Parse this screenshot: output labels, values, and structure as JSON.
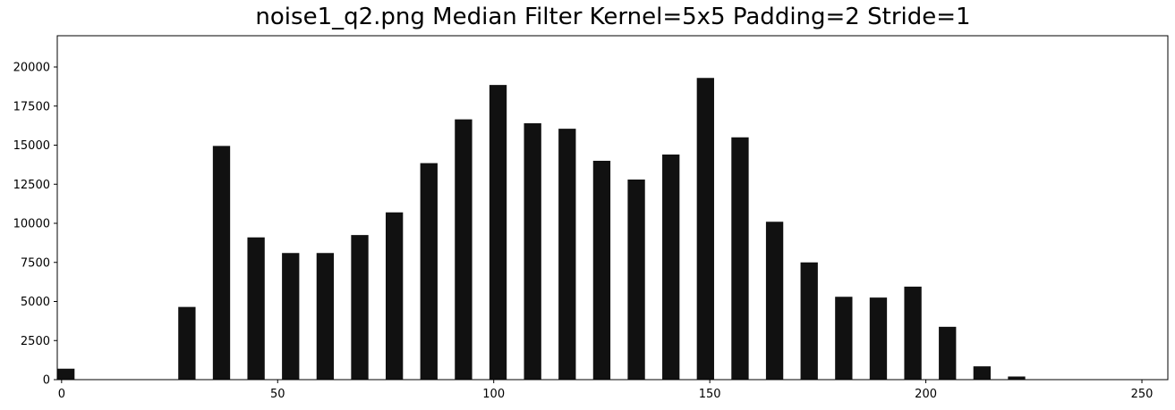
{
  "chart_data": {
    "type": "bar",
    "title": "noise1_q2.png Median Filter Kernel=5x5 Padding=2 Stride=1",
    "xlabel": "",
    "ylabel": "",
    "xlim": [
      -1,
      256
    ],
    "ylim": [
      0,
      22000
    ],
    "bar_color": "#111111",
    "bar_width": 4,
    "grid": false,
    "x": [
      0,
      28,
      36,
      44,
      52,
      60,
      68,
      76,
      84,
      92,
      100,
      108,
      116,
      124,
      132,
      140,
      148,
      156,
      164,
      172,
      180,
      188,
      196,
      204,
      212,
      220
    ],
    "values": [
      700,
      4650,
      14950,
      9100,
      8100,
      8100,
      9250,
      10700,
      13850,
      16650,
      18850,
      16400,
      16050,
      14000,
      12800,
      14400,
      19300,
      15500,
      10100,
      7500,
      5300,
      5250,
      5950,
      3380,
      850,
      200
    ],
    "x_ticks": [
      0,
      50,
      100,
      150,
      200,
      250
    ],
    "y_ticks": [
      0,
      2500,
      5000,
      7500,
      10000,
      12500,
      15000,
      17500,
      20000
    ]
  }
}
